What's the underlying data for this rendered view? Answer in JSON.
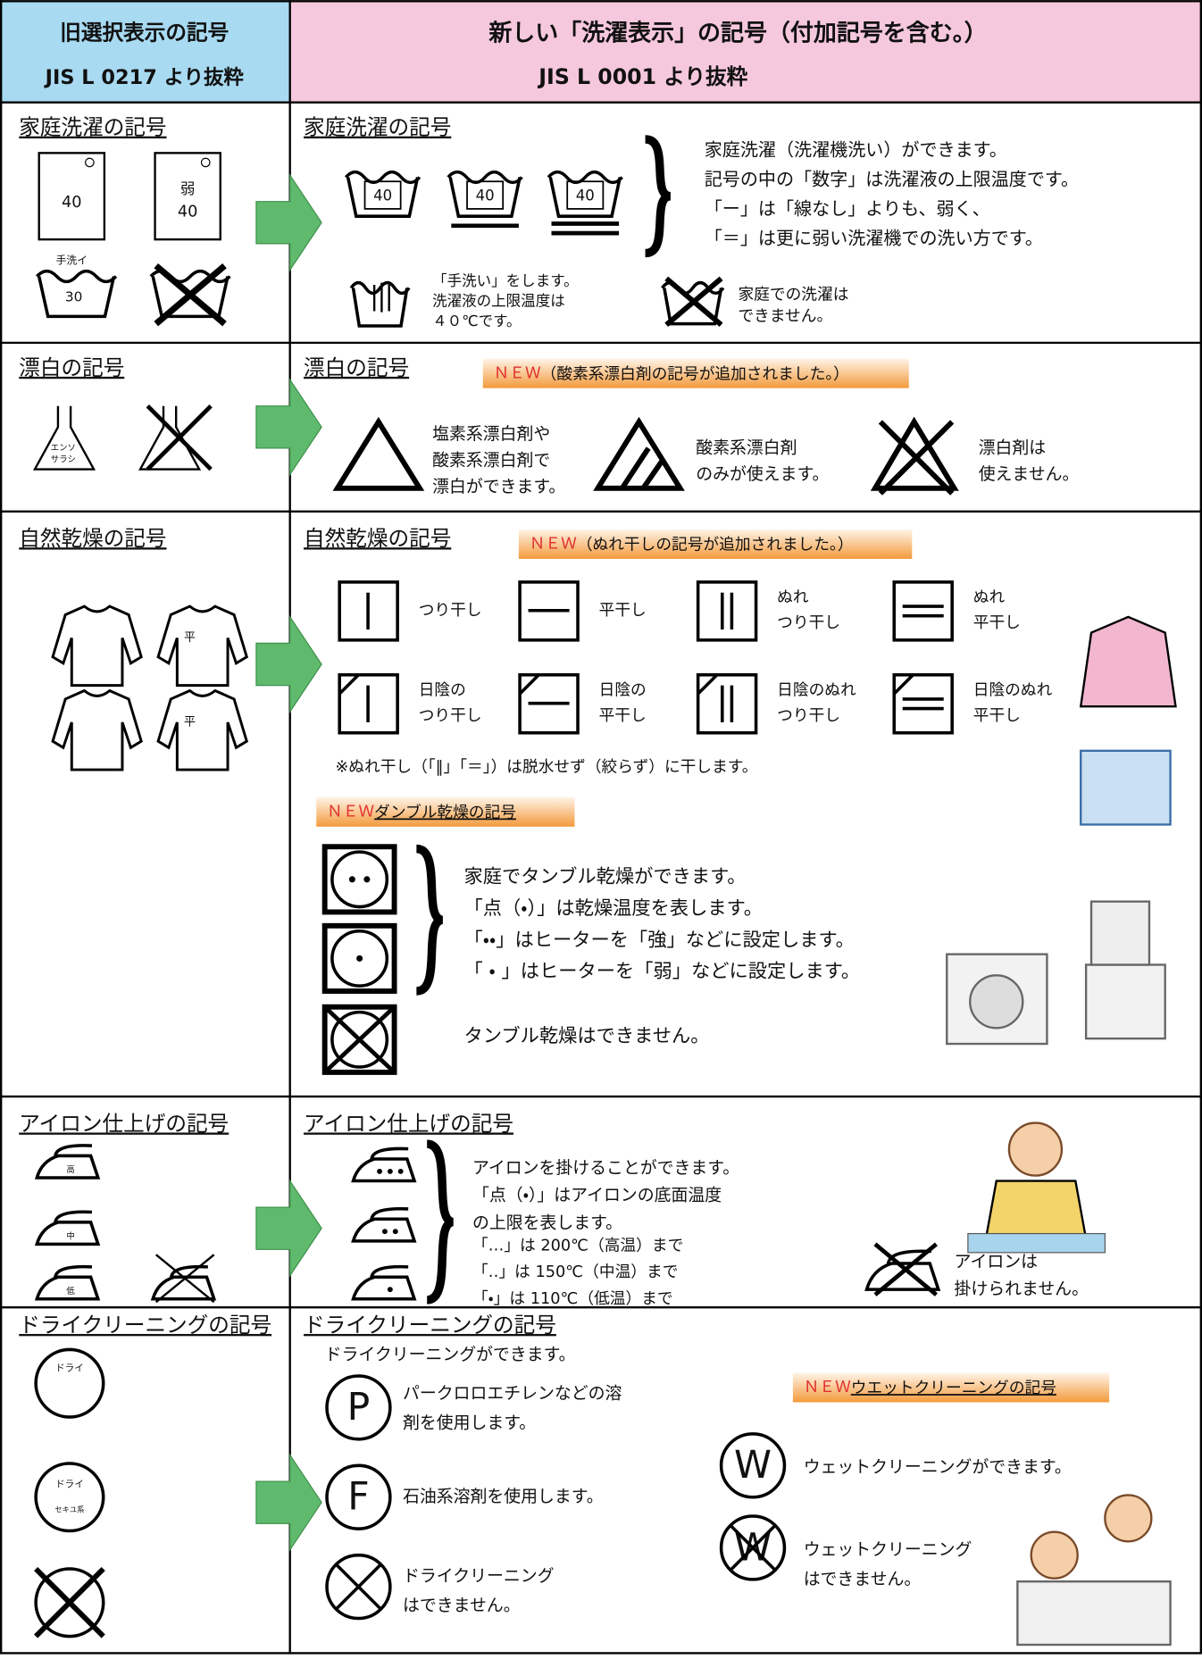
{
  "header": {
    "old_title": "旧選択表示の記号",
    "old_source": "JIS L 0217 より抜粋",
    "new_title": "新しい「洗濯表示」の記号（付加記号を含む。）",
    "new_source": "JIS L 0001 より抜粋"
  },
  "washing": {
    "old_heading": "家庭洗濯の記号",
    "old_symbols": [
      "40",
      "弱",
      "40",
      "手洗イ",
      "30"
    ],
    "new_heading": "家庭洗濯の記号",
    "new_symbols": [
      "40",
      "40",
      "40"
    ],
    "description": [
      "家庭洗濯（洗濯機洗い）ができます。",
      "記号の中の「数字」は洗濯液の上限温度です。",
      "「ー」は「線なし」よりも、弱く、",
      "「＝」は更に弱い洗濯機での洗い方です。"
    ],
    "hand_wash": [
      "「手洗い」をします。",
      "洗濯液の上限温度は",
      "４０℃です。"
    ],
    "no_wash": [
      "家庭での洗濯は",
      "できません。"
    ]
  },
  "bleaching": {
    "old_heading": "漂白の記号",
    "old_symbol": [
      "エンソ",
      "サラシ"
    ],
    "new_heading": "漂白の記号",
    "badge_new": "ＮＥＷ",
    "badge_text": "（酸素系漂白剤の記号が追加されました。）",
    "any": [
      "塩素系漂白剤や",
      "酸素系漂白剤で",
      "漂白ができます。"
    ],
    "oxygen_only": [
      "酸素系漂白剤",
      "のみが使えます。"
    ],
    "none": [
      "漂白剤は",
      "使えません。"
    ]
  },
  "drying": {
    "old_heading": "自然乾燥の記号",
    "old_symbols": [
      "平",
      "平"
    ],
    "new_heading": "自然乾燥の記号",
    "badge_new": "ＮＥＷ",
    "badge_text": "（ぬれ干しの記号が追加されました。）",
    "symbols": [
      [
        "つり干し"
      ],
      [
        "平干し"
      ],
      [
        "ぬれ",
        "つり干し"
      ],
      [
        "ぬれ",
        "平干し"
      ],
      [
        "日陰の",
        "つり干し"
      ],
      [
        "日陰の",
        "平干し"
      ],
      [
        "日陰のぬれ",
        "つり干し"
      ],
      [
        "日陰のぬれ",
        "平干し"
      ]
    ],
    "note": "※ぬれ干し（「‖」「＝」）は脱水せず（絞らず）に干します。",
    "tumble_badge_new": "ＮＥＷ",
    "tumble_heading": "ダンブル乾燥の記号",
    "tumble_description": [
      "家庭でタンブル乾燥ができます。",
      "「点（・）」は乾燥温度を表します。",
      "「・・」はヒーターを「強」などに設定します。",
      "「 ・ 」はヒーターを「弱」などに設定します。"
    ],
    "no_tumble": "タンブル乾燥はできません。"
  },
  "ironing": {
    "old_heading": "アイロン仕上げの記号",
    "old_symbols": [
      "高",
      "中",
      "低"
    ],
    "new_heading": "アイロン仕上げの記号",
    "description": [
      "アイロンを掛けることができます。",
      "「点（・）」はアイロンの底面温度",
      "の上限を表します。"
    ],
    "temperatures": [
      "「…」は 200℃（高温）まで",
      "「‥」は 150℃（中温）まで",
      "「・」は 110℃（低温）まで"
    ],
    "no_iron": [
      "アイロンは",
      "掛けられません。"
    ]
  },
  "dry_cleaning": {
    "old_heading": "ドライクリーニングの記号",
    "old_symbols": [
      "ドライ",
      "ドライ",
      "セキユ系"
    ],
    "new_heading": "ドライクリーニングの記号",
    "intro": "ドライクリーニングができます。",
    "p_symbol": "P",
    "p_text": [
      "パークロロエチレンなどの溶",
      "剤を使用します。"
    ],
    "f_symbol": "F",
    "f_text": "石油系溶剤を使用します。",
    "no_dry": [
      "ドライクリーニング",
      "はできません。"
    ],
    "wet_badge_new": "ＮＥＷ",
    "wet_heading": "ウエットクリーニングの記号",
    "w_symbol": "W",
    "w_text": "ウェットクリーニングができます。",
    "no_wet": [
      "ウェットクリーニング",
      "はできません。"
    ]
  }
}
